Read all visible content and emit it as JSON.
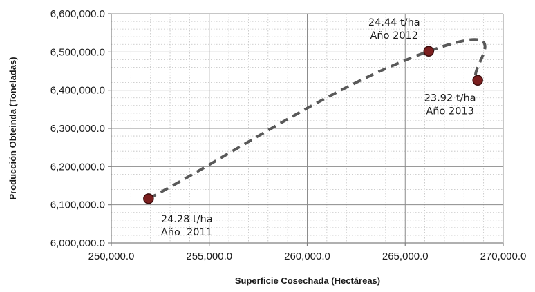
{
  "chart_data": {
    "type": "scatter",
    "xlabel": "Superficie Cosechada (Hectáreas)",
    "ylabel": "Producción Obteinda (Toneladas)",
    "xlim": [
      250000,
      270000
    ],
    "ylim": [
      6000000,
      6600000
    ],
    "x_ticks": [
      "250,000.0",
      "255,000.0",
      "260,000.0",
      "265,000.0",
      "270,000.0"
    ],
    "y_ticks": [
      "6,000,000.0",
      "6,100,000.0",
      "6,200,000.0",
      "6,300,000.0",
      "6,400,000.0",
      "6,500,000.0",
      "6,600,000.0"
    ],
    "grid": true,
    "legend": "none",
    "colors": {
      "marker": "#7b1f1f",
      "line": "#595959",
      "grid": "#bfbfbf",
      "axis": "#808080"
    },
    "series": [
      {
        "points": [
          {
            "x": 251900,
            "y": 6116000,
            "label_line1": "24.28 t/ha",
            "label_line2": "Año  2011"
          },
          {
            "x": 266200,
            "y": 6502000,
            "label_line1": "24.44 t/ha",
            "label_line2": "Año 2012"
          },
          {
            "x": 268700,
            "y": 6426000,
            "label_line1": "23.92 t/ha",
            "label_line2": "Año 2013"
          }
        ]
      }
    ]
  }
}
